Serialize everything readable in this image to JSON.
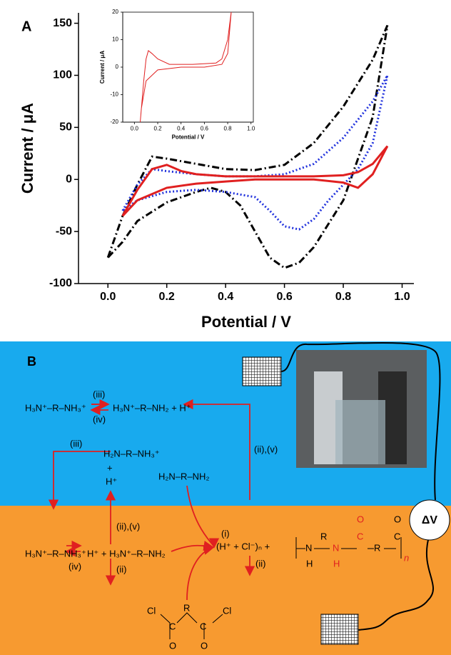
{
  "panel_a_label": "A",
  "chart_data": [
    {
      "type": "line",
      "x_label": "Potential / V",
      "y_label": "Current / μA",
      "xlim": [
        -0.1,
        1.04
      ],
      "ylim": [
        -100,
        160
      ],
      "xticks": [
        {
          "value": 0,
          "label": "0.0"
        },
        {
          "value": 0.2,
          "label": "0.2"
        },
        {
          "value": 0.4,
          "label": "0.4"
        },
        {
          "value": 0.6,
          "label": "0.6"
        },
        {
          "value": 0.8,
          "label": "0.8"
        },
        {
          "value": 1,
          "label": "1.0"
        }
      ],
      "yticks": [
        -100,
        -50,
        0,
        50,
        100,
        150
      ],
      "series": [
        {
          "color": "#000000",
          "style": "dash-dot",
          "x": [
            0,
            0.05,
            0.1,
            0.15,
            0.2,
            0.3,
            0.4,
            0.5,
            0.6,
            0.7,
            0.8,
            0.9,
            0.95,
            0.9,
            0.85,
            0.8,
            0.7,
            0.65,
            0.6,
            0.55,
            0.5,
            0.45,
            0.4,
            0.35,
            0.3,
            0.2,
            0.1,
            0.05,
            0
          ],
          "values": [
            -75,
            -35,
            -5,
            22,
            20,
            15,
            10,
            9,
            14,
            35,
            70,
            115,
            148,
            60,
            20,
            -20,
            -65,
            -80,
            -85,
            -75,
            -50,
            -25,
            -12,
            -8,
            -12,
            -22,
            -40,
            -60,
            -75
          ]
        },
        {
          "color": "#2233dd",
          "style": "dotted",
          "x": [
            0.05,
            0.1,
            0.15,
            0.2,
            0.3,
            0.4,
            0.5,
            0.6,
            0.7,
            0.8,
            0.9,
            0.95,
            0.9,
            0.85,
            0.8,
            0.75,
            0.7,
            0.65,
            0.6,
            0.55,
            0.5,
            0.4,
            0.3,
            0.2,
            0.1,
            0.05
          ],
          "values": [
            -30,
            -5,
            10,
            8,
            5,
            3,
            3,
            5,
            15,
            40,
            75,
            100,
            35,
            10,
            -5,
            -20,
            -38,
            -48,
            -45,
            -30,
            -17,
            -12,
            -10,
            -12,
            -20,
            -30
          ]
        },
        {
          "color": "#e02020",
          "style": "solid",
          "x": [
            0.05,
            0.1,
            0.15,
            0.2,
            0.25,
            0.3,
            0.4,
            0.5,
            0.6,
            0.7,
            0.8,
            0.85,
            0.9,
            0.95,
            0.9,
            0.85,
            0.8,
            0.7,
            0.6,
            0.5,
            0.4,
            0.3,
            0.2,
            0.1,
            0.05
          ],
          "values": [
            -35,
            -10,
            10,
            14,
            8,
            5,
            3,
            3,
            3,
            3,
            4,
            7,
            15,
            32,
            5,
            -8,
            -3,
            0,
            0,
            0,
            -2,
            -4,
            -8,
            -20,
            -35
          ]
        }
      ]
    },
    {
      "type": "line",
      "x_label": "Potential / V",
      "y_label": "Current / μA",
      "xlim": [
        -0.1,
        1.02
      ],
      "ylim": [
        -20,
        20
      ],
      "xticks": [
        {
          "value": 0,
          "label": "0.0"
        },
        {
          "value": 0.2,
          "label": "0.2"
        },
        {
          "value": 0.4,
          "label": "0.4"
        },
        {
          "value": 0.6,
          "label": "0.6"
        },
        {
          "value": 0.8,
          "label": "0.8"
        },
        {
          "value": 1,
          "label": "1.0"
        }
      ],
      "yticks": [
        -20,
        -10,
        0,
        10,
        20
      ],
      "series": [
        {
          "color": "#e02020",
          "style": "solid",
          "x": [
            0.05,
            0.08,
            0.1,
            0.12,
            0.15,
            0.2,
            0.3,
            0.5,
            0.7,
            0.75,
            0.8,
            0.83,
            0.8,
            0.75,
            0.6,
            0.4,
            0.2,
            0.1,
            0.06,
            0.05
          ],
          "values": [
            -20,
            -5,
            3,
            6,
            5,
            3,
            1,
            1,
            1.5,
            3,
            10,
            20,
            5,
            1,
            0,
            0,
            -1,
            -5,
            -15,
            -20
          ]
        }
      ]
    }
  ],
  "diagram": {
    "label": "B",
    "labels": [
      "H₃N⁺–R–NH₃⁺",
      "(iii)",
      "(iv)",
      "H₃N⁺–R–NH₂ + H⁺",
      "(iii)",
      "H₂N–R–NH₃⁺",
      "+",
      "H⁺",
      "H₂N–R–NH₂",
      "(ii),(v)",
      "(ii),(v)",
      "(i)",
      "(H⁺ + Cl⁻)ₙ +",
      "ΔV",
      "H₃N⁺–R–NH₃⁺",
      "(iv)",
      "H⁺ + H₃N⁺–R–NH₂",
      "(ii)",
      "(ii)"
    ],
    "polymer": [
      "N",
      "H",
      "R",
      "N",
      "H",
      "C",
      "O",
      "C",
      "O",
      "R",
      "n"
    ],
    "acyl_chloride": [
      "Cl",
      "C",
      "O",
      "R",
      "C",
      "O",
      "Cl"
    ]
  }
}
